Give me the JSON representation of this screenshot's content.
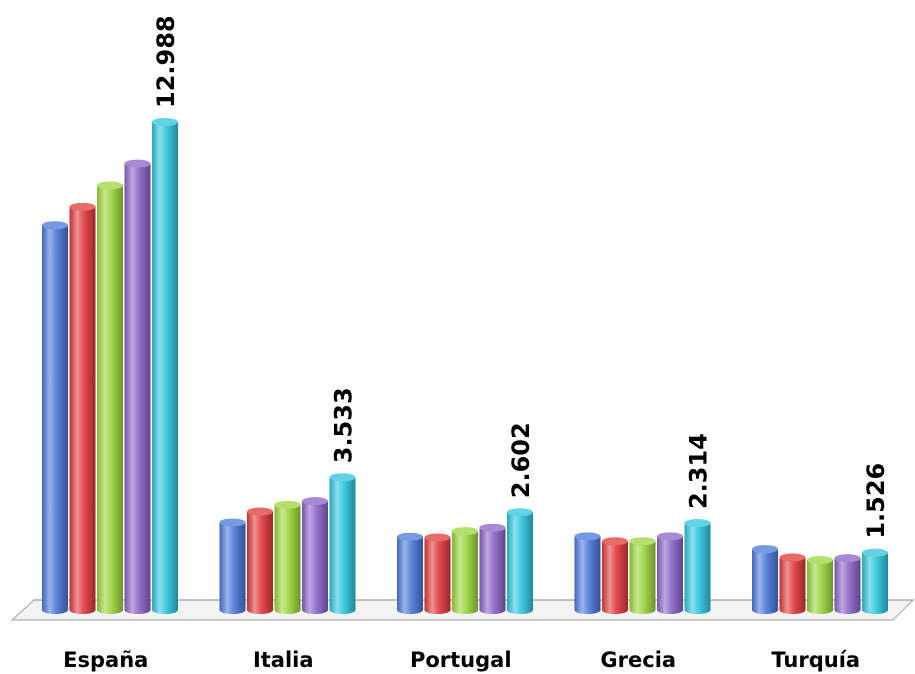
{
  "chart_data": {
    "type": "bar",
    "style": "3d-cylinder",
    "categories": [
      "España",
      "Italia",
      "Portugal",
      "Grecia",
      "Turquía"
    ],
    "series": [
      {
        "color": "#4a76d8",
        "values": [
          10240,
          2330,
          1950,
          1960,
          1620
        ]
      },
      {
        "color": "#e0383a",
        "values": [
          10730,
          2620,
          1930,
          1830,
          1400
        ]
      },
      {
        "color": "#9ad43a",
        "values": [
          11300,
          2800,
          2100,
          1830,
          1330
        ]
      },
      {
        "color": "#8a62c6",
        "values": [
          11880,
          2900,
          2190,
          1960,
          1380
        ]
      },
      {
        "color": "#2cc4dc",
        "values": [
          12988,
          3533,
          2602,
          2314,
          1526
        ]
      }
    ],
    "data_labels": [
      "12.988",
      "3.533",
      "2.602",
      "2.314",
      "1.526"
    ],
    "ylim": [
      0,
      12988
    ],
    "grid": false,
    "legend": "none"
  }
}
